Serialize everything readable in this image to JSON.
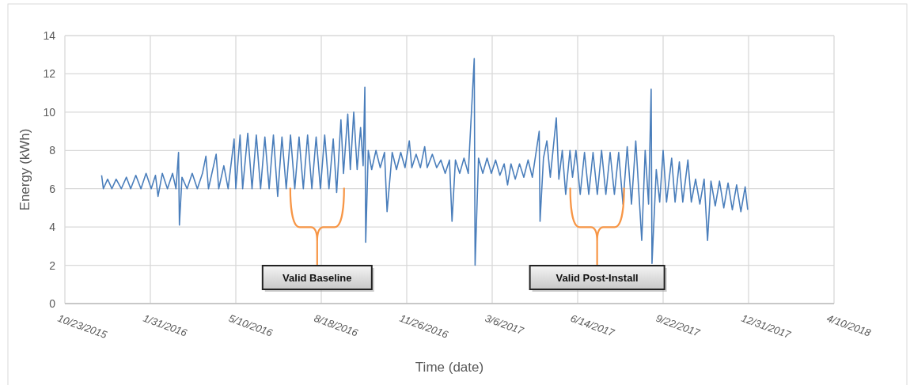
{
  "chart_data": {
    "type": "line",
    "xlabel": "Time (date)",
    "ylabel": "Energy (kWh)",
    "xlim": [
      "2015-10-23",
      "2018-04-10"
    ],
    "ylim": [
      0,
      14
    ],
    "xticks": [
      {
        "value": "2015-10-23",
        "label": "10/23/2015"
      },
      {
        "value": "2016-01-31",
        "label": "1/31/2016"
      },
      {
        "value": "2016-05-10",
        "label": "5/10/2016"
      },
      {
        "value": "2016-08-18",
        "label": "8/18/2016"
      },
      {
        "value": "2016-11-26",
        "label": "11/26/2016"
      },
      {
        "value": "2017-03-06",
        "label": "3/6/2017"
      },
      {
        "value": "2017-06-14",
        "label": "6/14/2017"
      },
      {
        "value": "2017-09-22",
        "label": "9/22/2017"
      },
      {
        "value": "2017-12-31",
        "label": "12/31/2017"
      },
      {
        "value": "2018-04-10",
        "label": "4/10/2018"
      }
    ],
    "yticks": [
      0,
      2,
      4,
      6,
      8,
      10,
      12,
      14
    ],
    "grid": true,
    "annotations": [
      "Valid Baseline",
      "Valid Post-Install"
    ],
    "series": [
      {
        "color": "#4a7ebb",
        "x": [
          "2015-12-05",
          "2015-12-07",
          "2015-12-12",
          "2015-12-17",
          "2015-12-22",
          "2015-12-28",
          "2016-01-03",
          "2016-01-08",
          "2016-01-14",
          "2016-01-20",
          "2016-01-26",
          "2016-02-01",
          "2016-02-06",
          "2016-02-09",
          "2016-02-14",
          "2016-02-20",
          "2016-02-26",
          "2016-03-01",
          "2016-03-04",
          "2016-03-05",
          "2016-03-08",
          "2016-03-14",
          "2016-03-20",
          "2016-03-26",
          "2016-04-01",
          "2016-04-05",
          "2016-04-08",
          "2016-04-17",
          "2016-04-20",
          "2016-04-26",
          "2016-05-01",
          "2016-05-08",
          "2016-05-10",
          "2016-05-15",
          "2016-05-18",
          "2016-05-24",
          "2016-05-29",
          "2016-06-03",
          "2016-06-08",
          "2016-06-13",
          "2016-06-18",
          "2016-06-23",
          "2016-06-28",
          "2016-07-03",
          "2016-07-08",
          "2016-07-13",
          "2016-07-18",
          "2016-07-23",
          "2016-07-28",
          "2016-08-02",
          "2016-08-07",
          "2016-08-12",
          "2016-08-17",
          "2016-08-22",
          "2016-08-27",
          "2016-09-01",
          "2016-09-05",
          "2016-09-10",
          "2016-09-13",
          "2016-09-18",
          "2016-09-21",
          "2016-09-25",
          "2016-09-29",
          "2016-10-03",
          "2016-10-06",
          "2016-10-08",
          "2016-10-09",
          "2016-10-12",
          "2016-10-16",
          "2016-10-21",
          "2016-10-26",
          "2016-10-31",
          "2016-11-03",
          "2016-11-09",
          "2016-11-14",
          "2016-11-19",
          "2016-11-24",
          "2016-11-29",
          "2016-12-02",
          "2016-12-07",
          "2016-12-12",
          "2016-12-17",
          "2016-12-20",
          "2016-12-26",
          "2016-12-31",
          "2017-01-05",
          "2017-01-10",
          "2017-01-15",
          "2017-01-18",
          "2017-01-22",
          "2017-01-27",
          "2017-02-01",
          "2017-02-06",
          "2017-02-13",
          "2017-02-14",
          "2017-02-18",
          "2017-02-23",
          "2017-02-28",
          "2017-03-05",
          "2017-03-10",
          "2017-03-15",
          "2017-03-20",
          "2017-03-24",
          "2017-03-28",
          "2017-04-02",
          "2017-04-07",
          "2017-04-12",
          "2017-04-17",
          "2017-04-22",
          "2017-04-30",
          "2017-05-01",
          "2017-05-05",
          "2017-05-09",
          "2017-05-13",
          "2017-05-20",
          "2017-05-23",
          "2017-05-27",
          "2017-05-31",
          "2017-06-05",
          "2017-06-08",
          "2017-06-12",
          "2017-06-17",
          "2017-06-22",
          "2017-06-27",
          "2017-07-02",
          "2017-07-07",
          "2017-07-12",
          "2017-07-17",
          "2017-07-22",
          "2017-07-27",
          "2017-08-01",
          "2017-08-06",
          "2017-08-11",
          "2017-08-16",
          "2017-08-21",
          "2017-08-28",
          "2017-09-01",
          "2017-09-05",
          "2017-09-08",
          "2017-09-09",
          "2017-09-14",
          "2017-09-18",
          "2017-09-22",
          "2017-09-26",
          "2017-10-02",
          "2017-10-06",
          "2017-10-11",
          "2017-10-15",
          "2017-10-21",
          "2017-10-25",
          "2017-10-30",
          "2017-11-04",
          "2017-11-09",
          "2017-11-13",
          "2017-11-17",
          "2017-11-22",
          "2017-11-27",
          "2017-12-02",
          "2017-12-07",
          "2017-12-12",
          "2017-12-17",
          "2017-12-22",
          "2017-12-27",
          "2017-12-30"
        ],
        "values": [
          6.7,
          6.0,
          6.5,
          6.0,
          6.5,
          6.0,
          6.6,
          6.0,
          6.7,
          6.0,
          6.8,
          6.0,
          6.7,
          5.6,
          6.8,
          6.0,
          6.8,
          6.0,
          7.9,
          4.1,
          6.6,
          6.0,
          6.8,
          6.0,
          6.8,
          7.7,
          6.0,
          7.8,
          6.0,
          7.2,
          6.0,
          8.6,
          6.0,
          8.8,
          6.0,
          8.9,
          6.0,
          8.8,
          6.0,
          8.7,
          6.0,
          8.8,
          5.6,
          8.7,
          6.0,
          8.8,
          6.0,
          8.7,
          6.0,
          8.8,
          6.0,
          8.7,
          6.0,
          8.8,
          6.0,
          8.6,
          5.8,
          9.6,
          6.8,
          9.9,
          7.0,
          10.0,
          7.0,
          9.2,
          7.2,
          11.3,
          3.2,
          8.0,
          7.0,
          8.0,
          7.1,
          7.9,
          4.8,
          7.9,
          7.0,
          7.9,
          7.1,
          8.5,
          7.1,
          7.8,
          7.1,
          8.2,
          7.1,
          7.8,
          7.1,
          7.5,
          6.8,
          7.5,
          4.3,
          7.5,
          6.8,
          7.6,
          6.8,
          12.8,
          2.0,
          7.6,
          6.8,
          7.6,
          6.8,
          7.5,
          6.7,
          7.3,
          6.2,
          7.3,
          6.5,
          7.3,
          6.6,
          7.5,
          6.6,
          9.0,
          4.3,
          7.6,
          8.5,
          6.6,
          9.7,
          6.5,
          8.0,
          5.7,
          8.0,
          6.6,
          8.0,
          5.7,
          7.9,
          5.7,
          7.9,
          5.7,
          8.0,
          5.7,
          7.9,
          5.7,
          7.9,
          5.2,
          8.2,
          5.2,
          8.5,
          3.3,
          8.0,
          5.2,
          11.2,
          2.1,
          7.0,
          5.3,
          8.0,
          5.3,
          7.6,
          5.3,
          7.4,
          5.3,
          7.5,
          5.3,
          6.5,
          5.2,
          6.5,
          3.3,
          6.4,
          5.1,
          6.4,
          5.0,
          6.3,
          4.9,
          6.2,
          4.8,
          6.1,
          4.9
        ]
      }
    ]
  }
}
